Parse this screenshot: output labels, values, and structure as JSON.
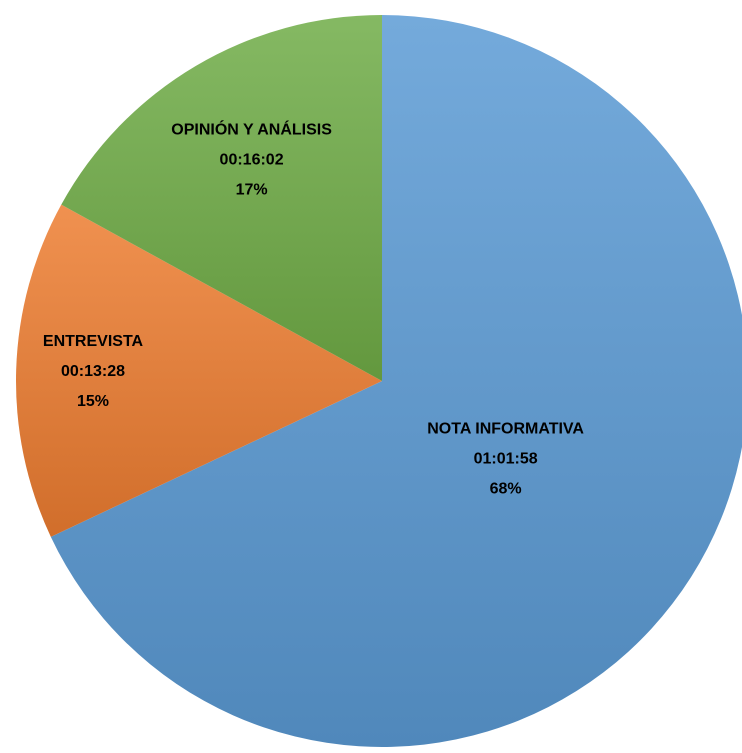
{
  "chart_data": {
    "type": "pie",
    "categories": [
      "NOTA INFORMATIVA",
      "ENTREVISTA",
      "OPINIÓN Y ANÁLISIS"
    ],
    "durations": [
      "01:01:58",
      "00:13:28",
      "00:16:02"
    ],
    "values": [
      68,
      15,
      17
    ],
    "value_labels": [
      "68%",
      "15%",
      "17%"
    ],
    "colors": [
      "#5b9bd5",
      "#ed7d31",
      "#70ad47"
    ]
  }
}
